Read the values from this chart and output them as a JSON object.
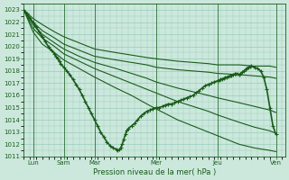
{
  "xlabel": "Pression niveau de la mer( hPa )",
  "bg_color": "#cce8dd",
  "grid_color": "#99ccbb",
  "line_color": "#1a5c1a",
  "ylim": [
    1011,
    1023.5
  ],
  "yticks": [
    1011,
    1012,
    1013,
    1014,
    1015,
    1016,
    1017,
    1018,
    1019,
    1020,
    1021,
    1022,
    1023
  ],
  "xlim": [
    0,
    8.5
  ],
  "labeled_positions": [
    0.3,
    1.3,
    2.3,
    4.3,
    6.3,
    8.2
  ],
  "labeled_names": [
    "Lun",
    "Sam",
    "Mar",
    "Mer",
    "Jeu",
    "Ven"
  ],
  "vline_positions": [
    0.3,
    1.3,
    2.3,
    4.3,
    6.3,
    8.2
  ],
  "lines": [
    {
      "comment": "top flat line - goes from 1023 to ~1018.5 nearly straight",
      "x": [
        0,
        0.3,
        0.6,
        1.0,
        1.3,
        1.8,
        2.3,
        3.0,
        3.5,
        4.0,
        4.3,
        5.0,
        5.5,
        6.0,
        6.3,
        7.0,
        7.5,
        8.0,
        8.2
      ],
      "y": [
        1023.0,
        1022.3,
        1021.8,
        1021.2,
        1020.8,
        1020.3,
        1019.8,
        1019.5,
        1019.3,
        1019.1,
        1019.0,
        1018.8,
        1018.7,
        1018.6,
        1018.5,
        1018.5,
        1018.4,
        1018.4,
        1018.3
      ],
      "marker": null,
      "lw": 0.8
    },
    {
      "comment": "second from top - nearly straight declining to ~1018",
      "x": [
        0,
        0.3,
        0.6,
        1.0,
        1.3,
        1.8,
        2.3,
        3.0,
        3.5,
        4.0,
        4.3,
        5.0,
        5.5,
        6.0,
        6.3,
        7.0,
        7.5,
        8.0,
        8.2
      ],
      "y": [
        1023.0,
        1022.0,
        1021.3,
        1020.7,
        1020.2,
        1019.7,
        1019.2,
        1018.9,
        1018.7,
        1018.5,
        1018.3,
        1018.1,
        1018.0,
        1017.9,
        1017.8,
        1017.7,
        1017.6,
        1017.5,
        1017.4
      ],
      "marker": null,
      "lw": 0.8
    },
    {
      "comment": "third line - declining to ~1016",
      "x": [
        0,
        0.3,
        0.6,
        1.0,
        1.3,
        1.8,
        2.3,
        3.0,
        3.5,
        4.0,
        4.3,
        5.0,
        5.5,
        6.0,
        6.3,
        7.0,
        7.5,
        8.0,
        8.2
      ],
      "y": [
        1023.0,
        1021.8,
        1021.0,
        1020.3,
        1019.8,
        1019.2,
        1018.7,
        1018.2,
        1017.8,
        1017.4,
        1017.1,
        1016.6,
        1016.3,
        1016.0,
        1015.8,
        1015.4,
        1015.1,
        1014.8,
        1014.6
      ],
      "marker": null,
      "lw": 0.8
    },
    {
      "comment": "fourth line - declining to ~1015",
      "x": [
        0,
        0.3,
        0.6,
        1.0,
        1.3,
        1.8,
        2.3,
        3.0,
        3.5,
        4.0,
        4.3,
        5.0,
        5.5,
        6.0,
        6.3,
        7.0,
        7.5,
        8.0,
        8.2
      ],
      "y": [
        1023.0,
        1021.5,
        1020.7,
        1020.0,
        1019.4,
        1018.8,
        1018.2,
        1017.5,
        1017.0,
        1016.5,
        1016.2,
        1015.5,
        1015.1,
        1014.7,
        1014.4,
        1013.8,
        1013.4,
        1013.1,
        1012.9
      ],
      "marker": null,
      "lw": 0.8
    },
    {
      "comment": "fifth line - steeper decline to ~1013",
      "x": [
        0,
        0.3,
        0.6,
        1.0,
        1.3,
        1.8,
        2.3,
        3.0,
        3.5,
        4.0,
        4.3,
        5.0,
        5.5,
        6.0,
        6.3,
        7.0,
        7.5,
        8.0,
        8.2
      ],
      "y": [
        1023.0,
        1021.2,
        1020.2,
        1019.5,
        1018.9,
        1018.2,
        1017.5,
        1016.6,
        1016.0,
        1015.3,
        1014.9,
        1014.0,
        1013.5,
        1013.0,
        1012.7,
        1012.0,
        1011.7,
        1011.5,
        1011.4
      ],
      "marker": null,
      "lw": 0.8
    },
    {
      "comment": "main forecast line with markers - dips to 1011.5 around Mar then recovers to 1018 at Jeu, drops at Ven",
      "x": [
        0,
        0.1,
        0.2,
        0.3,
        0.4,
        0.5,
        0.6,
        0.7,
        0.8,
        0.9,
        1.0,
        1.05,
        1.1,
        1.15,
        1.2,
        1.3,
        1.4,
        1.5,
        1.6,
        1.7,
        1.8,
        1.9,
        2.0,
        2.1,
        2.2,
        2.3,
        2.4,
        2.5,
        2.6,
        2.7,
        2.8,
        2.9,
        3.0,
        3.05,
        3.1,
        3.15,
        3.2,
        3.25,
        3.3,
        3.35,
        3.4,
        3.5,
        3.6,
        3.7,
        3.8,
        3.9,
        4.0,
        4.1,
        4.2,
        4.3,
        4.4,
        4.5,
        4.6,
        4.7,
        4.8,
        4.9,
        5.0,
        5.1,
        5.2,
        5.3,
        5.4,
        5.5,
        5.6,
        5.7,
        5.8,
        5.9,
        6.0,
        6.1,
        6.2,
        6.3,
        6.35,
        6.4,
        6.45,
        6.5,
        6.55,
        6.6,
        6.65,
        6.7,
        6.75,
        6.8,
        6.85,
        6.9,
        6.95,
        7.0,
        7.05,
        7.1,
        7.15,
        7.2,
        7.25,
        7.3,
        7.35,
        7.4,
        7.5,
        7.6,
        7.7,
        7.8,
        7.9,
        8.0,
        8.1,
        8.2
      ],
      "y": [
        1023.0,
        1022.7,
        1022.3,
        1022.0,
        1021.6,
        1021.2,
        1020.8,
        1020.4,
        1020.0,
        1019.7,
        1019.4,
        1019.2,
        1019.0,
        1018.8,
        1018.6,
        1018.3,
        1018.0,
        1017.7,
        1017.3,
        1016.9,
        1016.5,
        1016.0,
        1015.5,
        1015.0,
        1014.5,
        1014.0,
        1013.5,
        1013.0,
        1012.6,
        1012.2,
        1011.9,
        1011.7,
        1011.6,
        1011.5,
        1011.55,
        1011.7,
        1012.0,
        1012.4,
        1012.8,
        1013.1,
        1013.3,
        1013.5,
        1013.7,
        1014.0,
        1014.3,
        1014.5,
        1014.7,
        1014.8,
        1014.9,
        1015.0,
        1015.0,
        1015.1,
        1015.2,
        1015.3,
        1015.3,
        1015.4,
        1015.5,
        1015.6,
        1015.7,
        1015.8,
        1015.9,
        1016.0,
        1016.2,
        1016.4,
        1016.6,
        1016.8,
        1016.9,
        1017.0,
        1017.1,
        1017.2,
        1017.25,
        1017.3,
        1017.35,
        1017.4,
        1017.45,
        1017.5,
        1017.55,
        1017.6,
        1017.65,
        1017.7,
        1017.75,
        1017.8,
        1017.75,
        1017.7,
        1017.8,
        1017.9,
        1018.0,
        1018.1,
        1018.2,
        1018.3,
        1018.35,
        1018.4,
        1018.3,
        1018.2,
        1018.0,
        1017.5,
        1016.5,
        1015.0,
        1013.5,
        1012.8
      ],
      "marker": "+",
      "ms": 2.5,
      "lw": 1.2
    }
  ]
}
